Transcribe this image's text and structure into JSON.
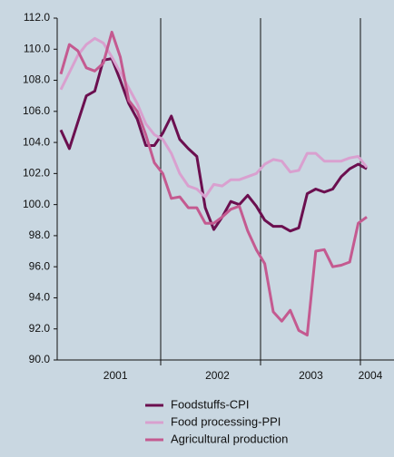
{
  "chart_data": {
    "type": "line",
    "categories": [
      null,
      null,
      null,
      null,
      null,
      null,
      "2001",
      null,
      null,
      null,
      null,
      null,
      null,
      null,
      null,
      null,
      null,
      null,
      "2002",
      null,
      null,
      null,
      null,
      null,
      null,
      null,
      null,
      null,
      null,
      "2003",
      null,
      null,
      null,
      null,
      null,
      null,
      "2004"
    ],
    "series": [
      {
        "name": "Foodstuffs-CPI",
        "color": "#6b0f4f",
        "values": [
          104.8,
          103.6,
          105.3,
          107.0,
          107.3,
          109.3,
          109.4,
          108.0,
          106.5,
          105.5,
          103.8,
          103.8,
          104.6,
          105.7,
          104.2,
          103.6,
          103.1,
          99.8,
          98.4,
          99.2,
          100.2,
          100.0,
          100.6,
          99.9,
          99.0,
          98.6,
          98.6,
          98.3,
          98.5,
          100.7,
          101.0,
          100.8,
          101.0,
          101.8,
          102.3,
          102.6,
          102.3
        ]
      },
      {
        "name": "Food processing-PPI",
        "color": "#d9a0cf",
        "values": [
          107.4,
          108.5,
          109.6,
          110.3,
          110.7,
          110.4,
          109.5,
          108.5,
          107.5,
          106.5,
          105.2,
          104.5,
          104.2,
          103.3,
          102.0,
          101.2,
          101.0,
          100.5,
          101.3,
          101.2,
          101.6,
          101.6,
          101.8,
          102.0,
          102.6,
          102.9,
          102.8,
          102.1,
          102.2,
          103.3,
          103.3,
          102.8,
          102.8,
          102.8,
          103.0,
          103.1,
          102.4
        ]
      },
      {
        "name": "Agricultural production",
        "color": "#c45a90",
        "values": [
          108.4,
          110.3,
          109.9,
          108.8,
          108.6,
          109.1,
          111.1,
          109.5,
          106.7,
          106.0,
          104.5,
          102.7,
          102.0,
          100.4,
          100.5,
          99.8,
          99.8,
          98.8,
          98.8,
          99.2,
          99.7,
          99.9,
          98.3,
          97.1,
          96.2,
          93.1,
          92.5,
          93.2,
          91.9,
          91.6,
          97.0,
          97.1,
          96.0,
          96.1,
          96.3,
          98.8,
          99.2
        ]
      }
    ],
    "ylim": [
      90,
      112
    ],
    "yticks": [
      {
        "value": 90,
        "label": "90.0"
      },
      {
        "value": 92,
        "label": "92.0"
      },
      {
        "value": 94,
        "label": "94.0"
      },
      {
        "value": 96,
        "label": "96.0"
      },
      {
        "value": 98,
        "label": "98.0"
      },
      {
        "value": 100,
        "label": "100.0"
      },
      {
        "value": 102,
        "label": "102.0"
      },
      {
        "value": 104,
        "label": "104.0"
      },
      {
        "value": 106,
        "label": "106.0"
      },
      {
        "value": 108,
        "label": "108.0"
      },
      {
        "value": 110,
        "label": "110.0"
      },
      {
        "value": 112,
        "label": "112.0"
      }
    ]
  }
}
